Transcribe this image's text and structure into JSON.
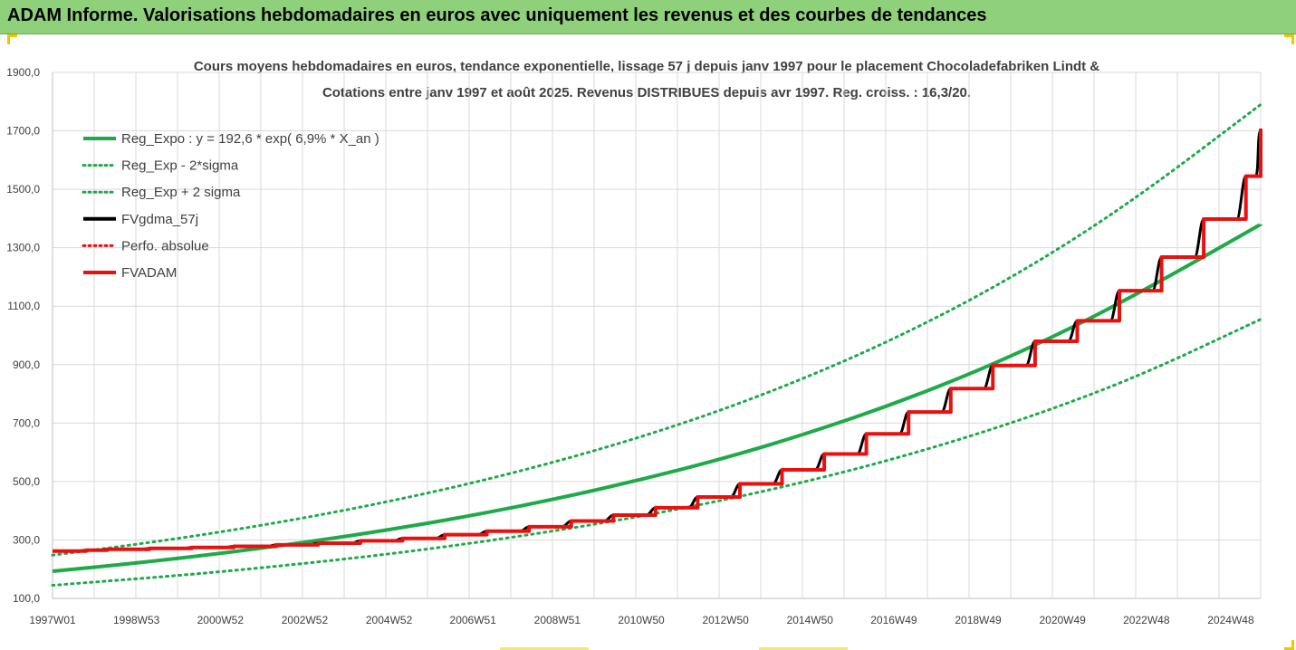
{
  "banner": {
    "title": "ADAM Informe. Valorisations hebdomadaires en euros avec uniquement les revenus et des courbes de tendances"
  },
  "colors": {
    "banner_bg": "#8fd17a",
    "green": "#1faa4a",
    "black": "#000000",
    "red": "#e8110f",
    "grid": "#d9d9d9",
    "accent": "#f2c500"
  },
  "chart_data": {
    "type": "line",
    "title": "Cours moyens hebdomadaires en euros, tendance exponentielle, lissage 57 j depuis janv 1997 pour le placement Chocoladefabriken Lindt &",
    "subtitle": "Cotations entre janv 1997 et août 2025. Revenus DISTRIBUES depuis avr 1997. Reg. croiss. : 16,3/20.",
    "xlabel": "",
    "ylabel": "",
    "ylim": [
      100,
      1900
    ],
    "xlim": [
      1997.0,
      2025.65
    ],
    "y_ticks": [
      "100,0",
      "300,0",
      "500,0",
      "700,0",
      "900,0",
      "1100,0",
      "1300,0",
      "1500,0",
      "1700,0",
      "1900,0"
    ],
    "x_ticks": [
      {
        "year": 1997.0,
        "label": "1997W01"
      },
      {
        "year": 1998.99,
        "label": "1998W53"
      },
      {
        "year": 2000.98,
        "label": "2000W52"
      },
      {
        "year": 2002.98,
        "label": "2002W52"
      },
      {
        "year": 2004.98,
        "label": "2004W52"
      },
      {
        "year": 2006.97,
        "label": "2006W51"
      },
      {
        "year": 2008.97,
        "label": "2008W51"
      },
      {
        "year": 2010.96,
        "label": "2010W50"
      },
      {
        "year": 2012.96,
        "label": "2012W50"
      },
      {
        "year": 2014.96,
        "label": "2014W50"
      },
      {
        "year": 2016.95,
        "label": "2016W49"
      },
      {
        "year": 2018.95,
        "label": "2018W49"
      },
      {
        "year": 2020.95,
        "label": "2020W49"
      },
      {
        "year": 2022.94,
        "label": "2022W48"
      },
      {
        "year": 2024.94,
        "label": "2024W48"
      }
    ],
    "grid": true,
    "legend_position": "top-left",
    "legend": [
      {
        "name": "Reg_Expo : y = 192,6 * exp( 6,9% *  X_an )",
        "color": "#1faa4a",
        "style": "solid"
      },
      {
        "name": "Reg_Exp - 2*sigma",
        "color": "#1faa4a",
        "style": "dotted"
      },
      {
        "name": "Reg_Exp + 2 sigma",
        "color": "#1faa4a",
        "style": "dotted"
      },
      {
        "name": "FVgdma_57j",
        "color": "#000000",
        "style": "solid"
      },
      {
        "name": "Perfo. absolue",
        "color": "#e8110f",
        "style": "dotted"
      },
      {
        "name": "FVADAM",
        "color": "#e8110f",
        "style": "solid"
      }
    ],
    "series": [
      {
        "name": "Reg_Expo : y = 192,6 * exp( 6,9% *  X_an )",
        "x": [
          1997,
          1999,
          2001,
          2003,
          2005,
          2007,
          2009,
          2011,
          2013,
          2015,
          2017,
          2019,
          2021,
          2023,
          2025.65
        ],
        "values": [
          193,
          221,
          254,
          292,
          335,
          385,
          442,
          508,
          582,
          669,
          768,
          882,
          1013,
          1163,
          1380
        ]
      },
      {
        "name": "Reg_Exp - 2*sigma",
        "x": [
          1997,
          1999,
          2001,
          2003,
          2005,
          2007,
          2009,
          2011,
          2013,
          2015,
          2017,
          2019,
          2021,
          2023,
          2025.65
        ],
        "values": [
          145,
          167,
          191,
          220,
          252,
          290,
          333,
          382,
          439,
          504,
          579,
          665,
          763,
          876,
          1055
        ]
      },
      {
        "name": "Reg_Exp + 2 sigma",
        "x": [
          1997,
          1999,
          2001,
          2003,
          2005,
          2007,
          2009,
          2011,
          2013,
          2015,
          2017,
          2019,
          2021,
          2023,
          2025.65
        ],
        "values": [
          248,
          285,
          327,
          376,
          432,
          496,
          570,
          654,
          751,
          863,
          991,
          1138,
          1307,
          1501,
          1790
        ]
      },
      {
        "name": "FVADAM",
        "x": [
          1997.0,
          1997.8,
          1998.3,
          1999.3,
          2000.3,
          2001.3,
          2002.3,
          2003.3,
          2004.3,
          2005.3,
          2006.3,
          2007.3,
          2008.3,
          2009.3,
          2010.3,
          2011.3,
          2012.3,
          2013.3,
          2014.3,
          2015.3,
          2016.3,
          2017.3,
          2018.3,
          2019.3,
          2020.3,
          2021.3,
          2022.3,
          2023.3,
          2024.3,
          2025.3,
          2025.65
        ],
        "values": [
          262,
          265,
          268,
          271,
          274,
          278,
          283,
          289,
          297,
          305,
          318,
          330,
          345,
          365,
          385,
          410,
          447,
          492,
          540,
          594,
          663,
          738,
          818,
          897,
          980,
          1050,
          1153,
          1268,
          1398,
          1545,
          1708
        ]
      },
      {
        "name": "FVgdma_57j",
        "x": [
          1997.0,
          1997.8,
          1998.3,
          1999.3,
          2000.3,
          2001.3,
          2002.3,
          2003.3,
          2004.3,
          2005.3,
          2006.3,
          2007.3,
          2008.3,
          2009.3,
          2010.3,
          2011.3,
          2012.3,
          2013.3,
          2014.3,
          2015.3,
          2016.3,
          2017.3,
          2018.3,
          2019.3,
          2020.3,
          2021.3,
          2022.3,
          2023.3,
          2024.3,
          2025.3,
          2025.65
        ],
        "values": [
          262,
          265,
          268,
          271,
          274,
          278,
          283,
          289,
          297,
          305,
          318,
          330,
          345,
          365,
          385,
          410,
          447,
          492,
          540,
          594,
          663,
          738,
          818,
          897,
          980,
          1050,
          1153,
          1268,
          1398,
          1545,
          1700
        ]
      }
    ]
  }
}
